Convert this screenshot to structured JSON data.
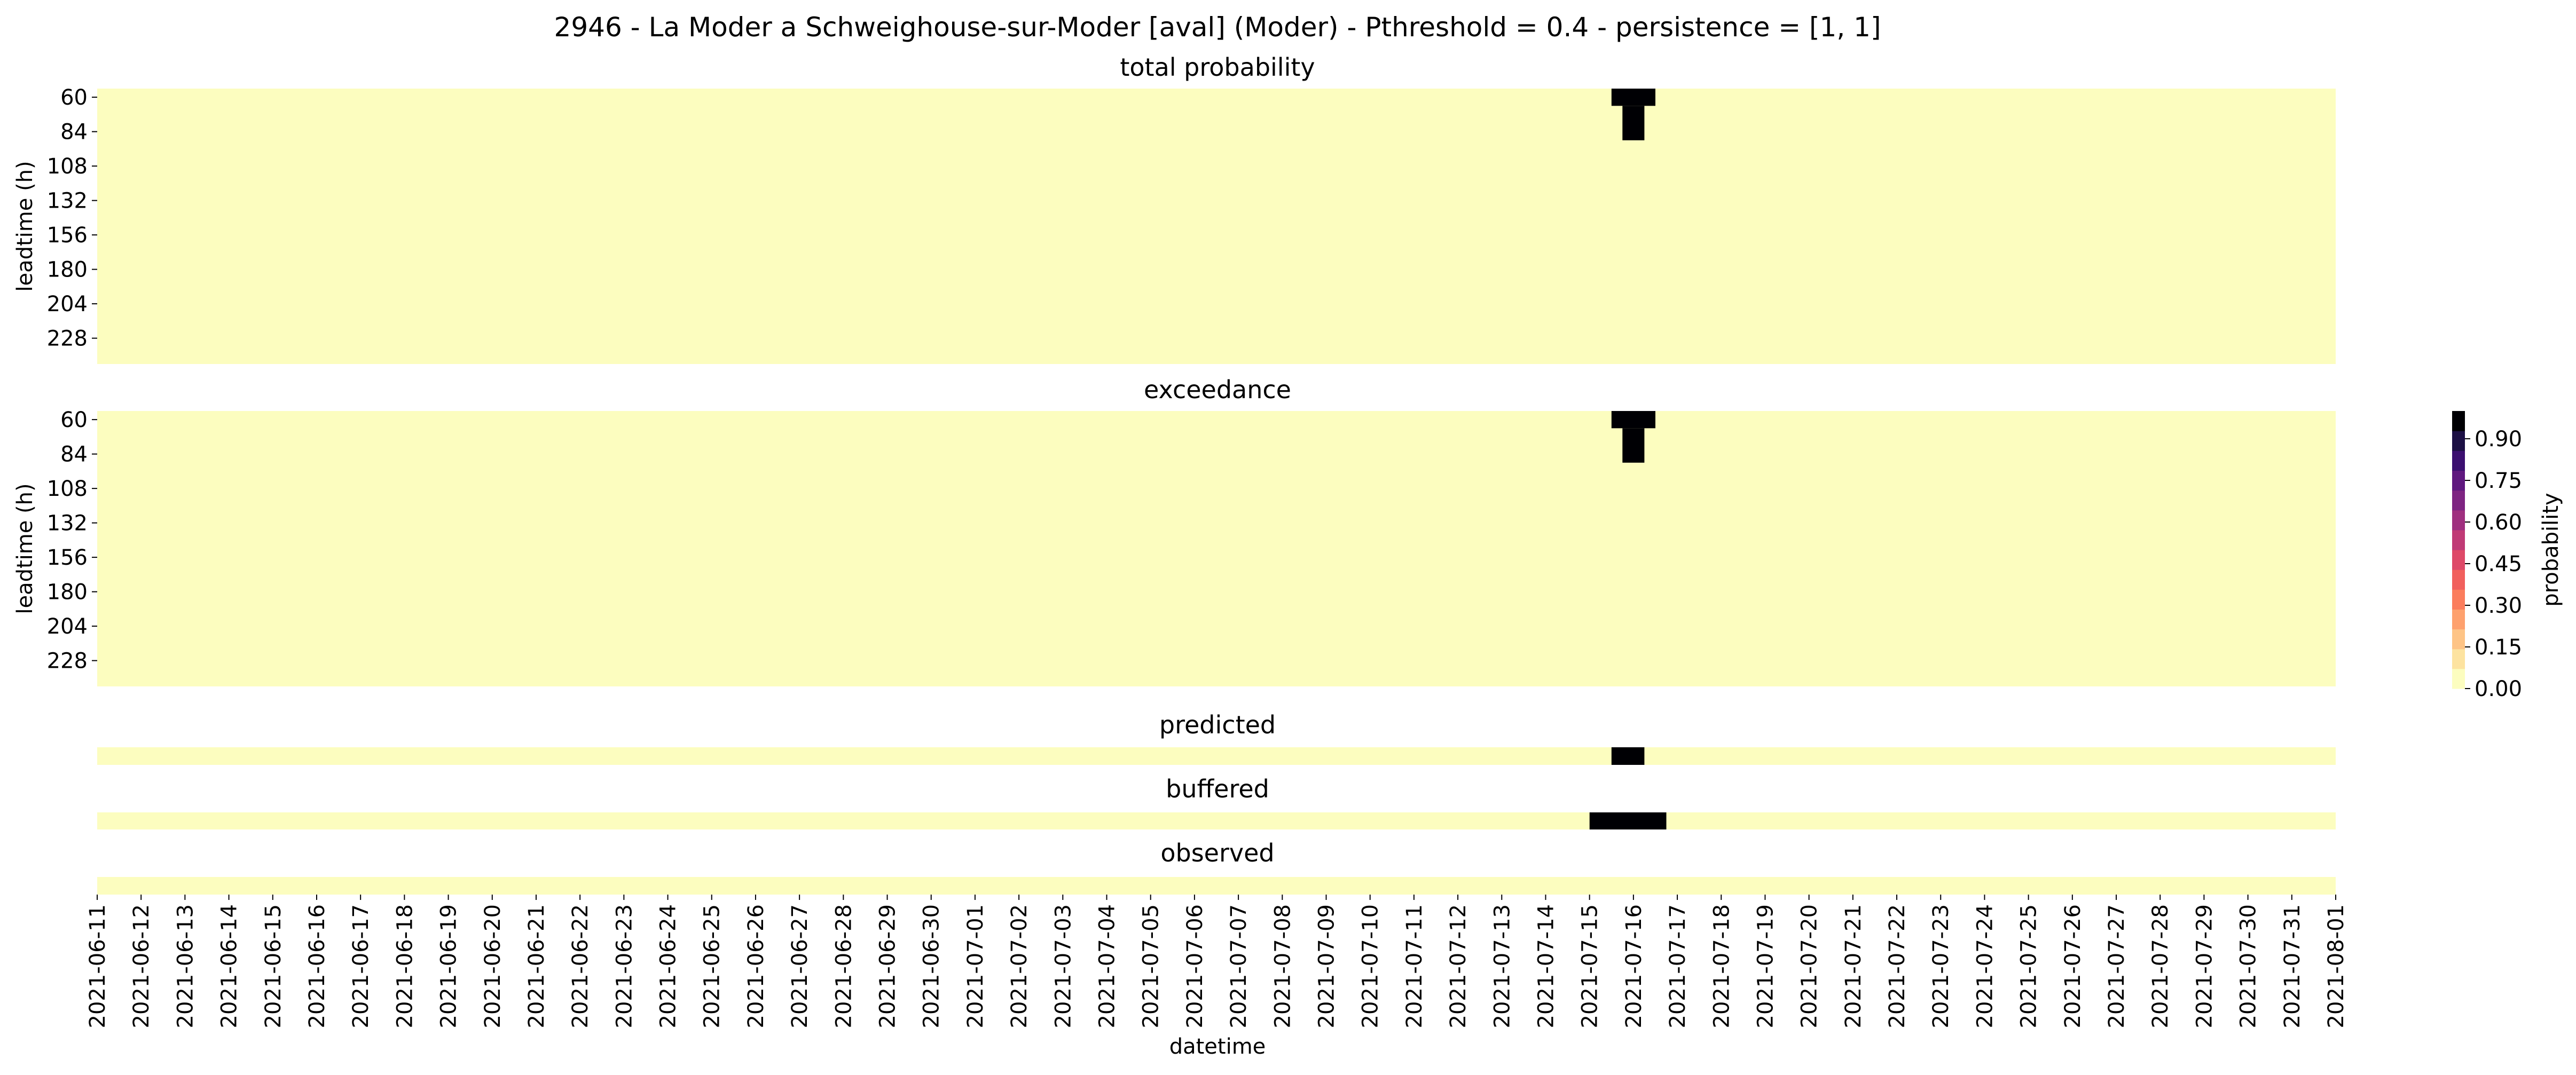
{
  "chart_data": {
    "type": "heatmap",
    "title": "2946 - La Moder a Schweighouse-sur-Moder [aval] (Moder) - Pthreshold = 0.4 - persistence = [1, 1]",
    "xlabel": "datetime",
    "colorscale": {
      "name": "magma_r",
      "label": "probability",
      "range": [
        0,
        1
      ],
      "ticks": [
        "0.00",
        "0.15",
        "0.30",
        "0.45",
        "0.60",
        "0.75",
        "0.90"
      ],
      "tick_values": [
        0,
        0.15,
        0.3,
        0.45,
        0.6,
        0.75,
        0.9
      ],
      "levels": [
        "#fcfdbf",
        "#fde3a0",
        "#fec486",
        "#fea16e",
        "#fb7d5d",
        "#f1605d",
        "#de4968",
        "#c03a76",
        "#9f2f7f",
        "#7e2482",
        "#5f187f",
        "#3b0f70",
        "#1c1044",
        "#000004"
      ]
    },
    "dates": [
      "2021-06-11",
      "2021-06-12",
      "2021-06-13",
      "2021-06-14",
      "2021-06-15",
      "2021-06-16",
      "2021-06-17",
      "2021-06-18",
      "2021-06-19",
      "2021-06-20",
      "2021-06-21",
      "2021-06-22",
      "2021-06-23",
      "2021-06-24",
      "2021-06-25",
      "2021-06-26",
      "2021-06-27",
      "2021-06-28",
      "2021-06-29",
      "2021-06-30",
      "2021-07-01",
      "2021-07-02",
      "2021-07-03",
      "2021-07-04",
      "2021-07-05",
      "2021-07-06",
      "2021-07-07",
      "2021-07-08",
      "2021-07-09",
      "2021-07-10",
      "2021-07-11",
      "2021-07-12",
      "2021-07-13",
      "2021-07-14",
      "2021-07-15",
      "2021-07-16",
      "2021-07-17",
      "2021-07-18",
      "2021-07-19",
      "2021-07-20",
      "2021-07-21",
      "2021-07-22",
      "2021-07-23",
      "2021-07-24",
      "2021-07-25",
      "2021-07-26",
      "2021-07-27",
      "2021-07-28",
      "2021-07-29",
      "2021-07-30",
      "2021-07-31",
      "2021-08-01"
    ],
    "panels": [
      {
        "title": "total probability",
        "ylabel": "leadtime (h)",
        "yticks": [
          "60",
          "84",
          "108",
          "132",
          "156",
          "180",
          "204",
          "228"
        ],
        "leadtimes": [
          60,
          72,
          84,
          96,
          108,
          120,
          132,
          144,
          156,
          168,
          180,
          192,
          204,
          216,
          228,
          240
        ],
        "cells": [
          {
            "leadtime": 60,
            "from": "2021-07-15 12:00",
            "to": "2021-07-16 12:00",
            "value": 1
          },
          {
            "leadtime": 72,
            "from": "2021-07-15 18:00",
            "to": "2021-07-16 06:00",
            "value": 1
          },
          {
            "leadtime": 84,
            "from": "2021-07-15 18:00",
            "to": "2021-07-16 06:00",
            "value": 1
          }
        ]
      },
      {
        "title": "exceedance",
        "ylabel": "leadtime (h)",
        "yticks": [
          "60",
          "84",
          "108",
          "132",
          "156",
          "180",
          "204",
          "228"
        ],
        "leadtimes": [
          60,
          72,
          84,
          96,
          108,
          120,
          132,
          144,
          156,
          168,
          180,
          192,
          204,
          216,
          228,
          240
        ],
        "cells": [
          {
            "leadtime": 60,
            "from": "2021-07-15 12:00",
            "to": "2021-07-16 12:00",
            "value": 1
          },
          {
            "leadtime": 72,
            "from": "2021-07-15 18:00",
            "to": "2021-07-16 06:00",
            "value": 1
          },
          {
            "leadtime": 84,
            "from": "2021-07-15 18:00",
            "to": "2021-07-16 06:00",
            "value": 1
          }
        ]
      },
      {
        "title": "predicted",
        "cells": [
          {
            "from": "2021-07-15 12:00",
            "to": "2021-07-16 06:00",
            "value": 1
          }
        ]
      },
      {
        "title": "buffered",
        "cells": [
          {
            "from": "2021-07-15 00:00",
            "to": "2021-07-16 18:00",
            "value": 1
          }
        ]
      },
      {
        "title": "observed",
        "cells": []
      }
    ]
  }
}
